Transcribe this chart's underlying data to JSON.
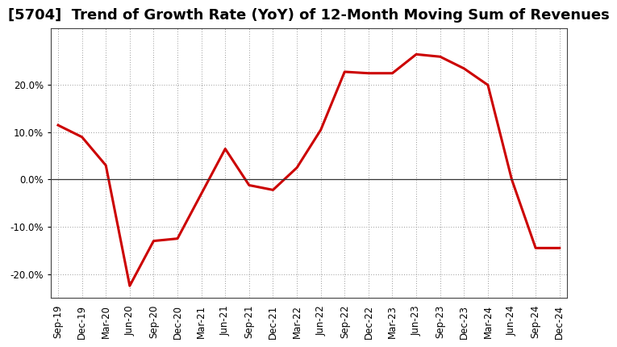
{
  "title": "[5704]  Trend of Growth Rate (YoY) of 12-Month Moving Sum of Revenues",
  "line_color": "#cc0000",
  "background_color": "#ffffff",
  "plot_background": "#ffffff",
  "grid_color": "#999999",
  "x_labels": [
    "Sep-19",
    "Dec-19",
    "Mar-20",
    "Jun-20",
    "Sep-20",
    "Dec-20",
    "Mar-21",
    "Jun-21",
    "Sep-21",
    "Dec-21",
    "Mar-22",
    "Jun-22",
    "Sep-22",
    "Dec-22",
    "Mar-23",
    "Jun-23",
    "Sep-23",
    "Dec-23",
    "Mar-24",
    "Jun-24",
    "Sep-24",
    "Dec-24"
  ],
  "y_values": [
    0.115,
    0.09,
    0.03,
    -0.225,
    -0.13,
    -0.125,
    -0.03,
    0.065,
    -0.012,
    -0.022,
    0.025,
    0.105,
    0.228,
    0.225,
    0.225,
    0.265,
    0.26,
    0.235,
    0.2,
    0.0,
    -0.145,
    -0.145
  ],
  "ylim": [
    -0.25,
    0.32
  ],
  "yticks": [
    -0.2,
    -0.1,
    0.0,
    0.1,
    0.2
  ],
  "title_fontsize": 13,
  "tick_fontsize": 8.5,
  "line_width": 2.2
}
